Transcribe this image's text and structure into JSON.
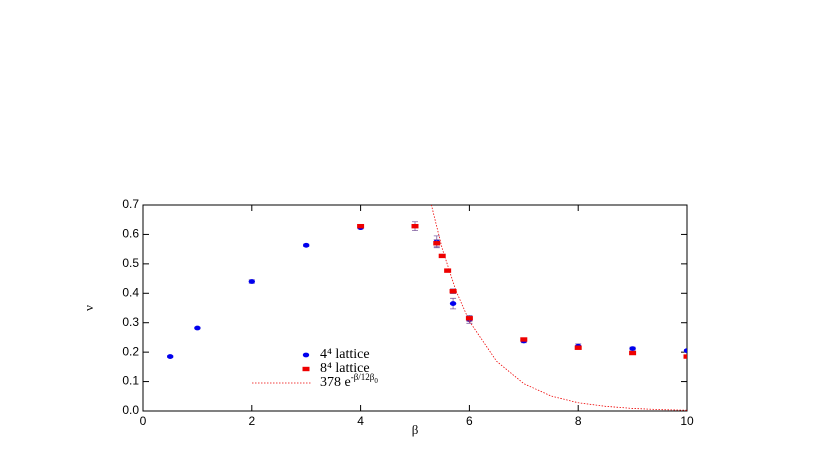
{
  "chart_data": {
    "type": "scatter",
    "xlabel": "β",
    "ylabel": "ν",
    "xlim": [
      0,
      10
    ],
    "ylim": [
      0,
      0.7
    ],
    "xticks": [
      0,
      2,
      4,
      6,
      8,
      10
    ],
    "yticks": [
      {
        "value": 0,
        "label": "0.0"
      },
      0.1,
      0.2,
      0.3,
      0.4,
      0.5,
      0.6,
      0.7
    ],
    "series": [
      {
        "name": "4⁴ lattice",
        "color": "#0000ee",
        "marker": "circle",
        "x": [
          0.5,
          1,
          2,
          3,
          4,
          5.4,
          5.7,
          6,
          7,
          8,
          9,
          10
        ],
        "values": [
          0.185,
          0.282,
          0.44,
          0.563,
          0.623,
          0.575,
          0.365,
          0.31,
          0.238,
          0.22,
          0.212,
          0.205
        ],
        "errors": [
          0.003,
          0.003,
          0.006,
          0.004,
          0.004,
          0.02,
          0.018,
          0.012,
          0.006,
          0.008,
          0.005,
          0.004
        ]
      },
      {
        "name": "8⁴ lattice",
        "color": "#ee0000",
        "marker": "rect",
        "x": [
          4,
          5,
          5.4,
          5.5,
          5.6,
          5.7,
          6,
          7,
          8,
          9,
          10
        ],
        "values": [
          0.628,
          0.628,
          0.57,
          0.527,
          0.477,
          0.407,
          0.315,
          0.243,
          0.215,
          0.197,
          0.185
        ],
        "errors": [
          0.005,
          0.015,
          0.012,
          0.004,
          0.004,
          0.008,
          0.01,
          0.005,
          0.005,
          0.003,
          0.003
        ]
      },
      {
        "name": "378 e",
        "name_sup": "-β/12β",
        "name_sub": "0",
        "color": "#ee0000",
        "marker": "line",
        "x": [
          5.3,
          5.5,
          5.75,
          6,
          6.5,
          7,
          7.5,
          8,
          8.5,
          9,
          9.5,
          10
        ],
        "values": [
          0.701,
          0.552,
          0.41,
          0.305,
          0.169,
          0.093,
          0.051,
          0.028,
          0.016,
          0.0087,
          0.0048,
          0.0026
        ]
      }
    ]
  }
}
